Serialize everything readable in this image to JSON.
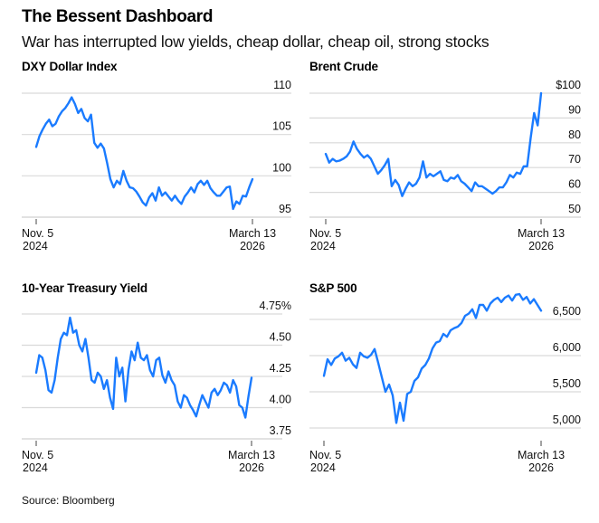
{
  "header": {
    "title": "The Bessent Dashboard",
    "subtitle": "War has interrupted low yields, cheap dollar, cheap oil, strong stocks"
  },
  "footer": {
    "source": "Source: Bloomberg"
  },
  "style": {
    "line_color": "#1a7bff",
    "grid_color": "#d9d9d9",
    "axis_color": "#444444"
  },
  "chart_data": [
    {
      "id": "dxy",
      "type": "line",
      "title": "DXY Dollar Index",
      "xlabel": "",
      "ylabel": "",
      "x_start": "Nov. 5 2024",
      "x_end": "March 13 2026",
      "x_ticks": [
        {
          "line1": "Nov. 5",
          "line2": "2024"
        },
        {
          "line1": "March 13",
          "line2": "2026"
        }
      ],
      "ylim": [
        95,
        110
      ],
      "y_ticks": [
        110,
        105,
        100,
        95
      ],
      "y_tick_labels": [
        "110",
        "105",
        "100",
        "95"
      ],
      "grid": true,
      "series": [
        {
          "name": "DXY",
          "values": [
            103.5,
            104.8,
            105.6,
            106.3,
            106.8,
            106.0,
            106.3,
            107.2,
            107.8,
            108.2,
            108.8,
            109.5,
            108.7,
            107.6,
            108.1,
            107.0,
            106.6,
            107.4,
            104.0,
            103.4,
            103.9,
            103.3,
            101.5,
            99.6,
            98.6,
            99.4,
            99.0,
            100.6,
            99.4,
            98.6,
            98.5,
            98.1,
            97.5,
            96.8,
            96.4,
            97.4,
            97.9,
            97.0,
            98.6,
            97.6,
            98.0,
            97.5,
            97.0,
            97.6,
            97.0,
            96.6,
            97.5,
            98.0,
            98.6,
            98.0,
            99.0,
            99.4,
            98.9,
            99.4,
            98.5,
            98.0,
            97.6,
            97.6,
            98.1,
            98.6,
            98.7,
            96.0,
            96.9,
            96.6,
            97.6,
            97.5,
            98.6,
            99.6
          ]
        }
      ]
    },
    {
      "id": "brent",
      "type": "line",
      "title": "Brent Crude",
      "xlabel": "",
      "ylabel": "",
      "x_start": "Nov. 5 2024",
      "x_end": "March 13 2026",
      "x_ticks": [
        {
          "line1": "Nov. 5",
          "line2": "2024"
        },
        {
          "line1": "March 13",
          "line2": "2026"
        }
      ],
      "ylim": [
        50,
        100
      ],
      "y_ticks": [
        100,
        90,
        80,
        70,
        60,
        50
      ],
      "y_tick_labels": [
        "$100",
        "90",
        "80",
        "70",
        "60",
        "50"
      ],
      "grid": true,
      "series": [
        {
          "name": "Brent",
          "values": [
            75.5,
            72.0,
            73.5,
            72.5,
            72.8,
            73.5,
            74.5,
            76.5,
            80.5,
            77.5,
            75.5,
            74.0,
            75.0,
            73.5,
            70.5,
            67.5,
            69.0,
            71.0,
            73.5,
            62.5,
            65.0,
            63.0,
            58.5,
            61.5,
            64.0,
            62.5,
            63.5,
            66.0,
            72.5,
            66.0,
            67.5,
            66.5,
            67.5,
            68.5,
            65.0,
            64.5,
            66.0,
            65.5,
            67.0,
            64.5,
            63.5,
            62.0,
            60.5,
            64.0,
            62.5,
            62.5,
            61.5,
            60.5,
            59.5,
            60.5,
            62.0,
            62.0,
            64.0,
            67.0,
            66.0,
            68.0,
            67.5,
            70.5,
            70.5,
            82.0,
            92.0,
            87.0,
            100.0
          ]
        }
      ]
    },
    {
      "id": "treasury",
      "type": "line",
      "title": "10-Year Treasury Yield",
      "xlabel": "",
      "ylabel": "",
      "x_start": "Nov. 5 2024",
      "x_end": "March 13 2026",
      "x_ticks": [
        {
          "line1": "Nov. 5",
          "line2": "2024"
        },
        {
          "line1": "March 13",
          "line2": "2026"
        }
      ],
      "ylim": [
        3.75,
        4.75
      ],
      "y_ticks": [
        4.75,
        4.5,
        4.25,
        4.0,
        3.75
      ],
      "y_tick_labels": [
        "4.75%",
        "4.50",
        "4.25",
        "4.00",
        "3.75"
      ],
      "grid": true,
      "series": [
        {
          "name": "10Y yield",
          "values": [
            4.28,
            4.42,
            4.4,
            4.3,
            4.14,
            4.12,
            4.22,
            4.4,
            4.55,
            4.6,
            4.58,
            4.72,
            4.6,
            4.62,
            4.5,
            4.45,
            4.55,
            4.4,
            4.22,
            4.2,
            4.28,
            4.25,
            4.15,
            4.22,
            4.08,
            3.99,
            4.4,
            4.25,
            4.32,
            4.05,
            4.3,
            4.45,
            4.38,
            4.52,
            4.4,
            4.38,
            4.42,
            4.3,
            4.25,
            4.38,
            4.4,
            4.26,
            4.2,
            4.29,
            4.22,
            4.18,
            4.05,
            4.0,
            4.1,
            4.08,
            4.02,
            3.98,
            3.93,
            4.02,
            4.1,
            4.05,
            4.0,
            4.12,
            4.15,
            4.1,
            4.14,
            4.2,
            4.18,
            4.12,
            4.22,
            4.17,
            4.02,
            4.0,
            3.92,
            4.09,
            4.24
          ]
        }
      ]
    },
    {
      "id": "sp500",
      "type": "line",
      "title": "S&P 500",
      "xlabel": "",
      "ylabel": "",
      "x_start": "Nov. 5 2024",
      "x_end": "March 13 2026",
      "x_ticks": [
        {
          "line1": "Nov. 5",
          "line2": "2024"
        },
        {
          "line1": "March 13",
          "line2": "2026"
        }
      ],
      "ylim": [
        4850,
        6850
      ],
      "y_ticks": [
        6500,
        6000,
        5500,
        5000
      ],
      "y_tick_labels": [
        "6,500",
        "6,000",
        "5,500",
        "5,000"
      ],
      "grid": true,
      "series": [
        {
          "name": "S&P 500",
          "values": [
            5720,
            5950,
            5870,
            5960,
            5990,
            6040,
            5930,
            5970,
            5880,
            5830,
            6040,
            5990,
            5970,
            6010,
            6090,
            5900,
            5700,
            5500,
            5600,
            5450,
            5070,
            5350,
            5100,
            5470,
            5500,
            5650,
            5700,
            5820,
            5870,
            5960,
            6100,
            6180,
            6200,
            6300,
            6260,
            6350,
            6380,
            6400,
            6450,
            6550,
            6580,
            6640,
            6520,
            6700,
            6700,
            6620,
            6720,
            6770,
            6800,
            6740,
            6800,
            6830,
            6760,
            6840,
            6850,
            6770,
            6810,
            6720,
            6780,
            6700,
            6620
          ]
        }
      ]
    }
  ]
}
